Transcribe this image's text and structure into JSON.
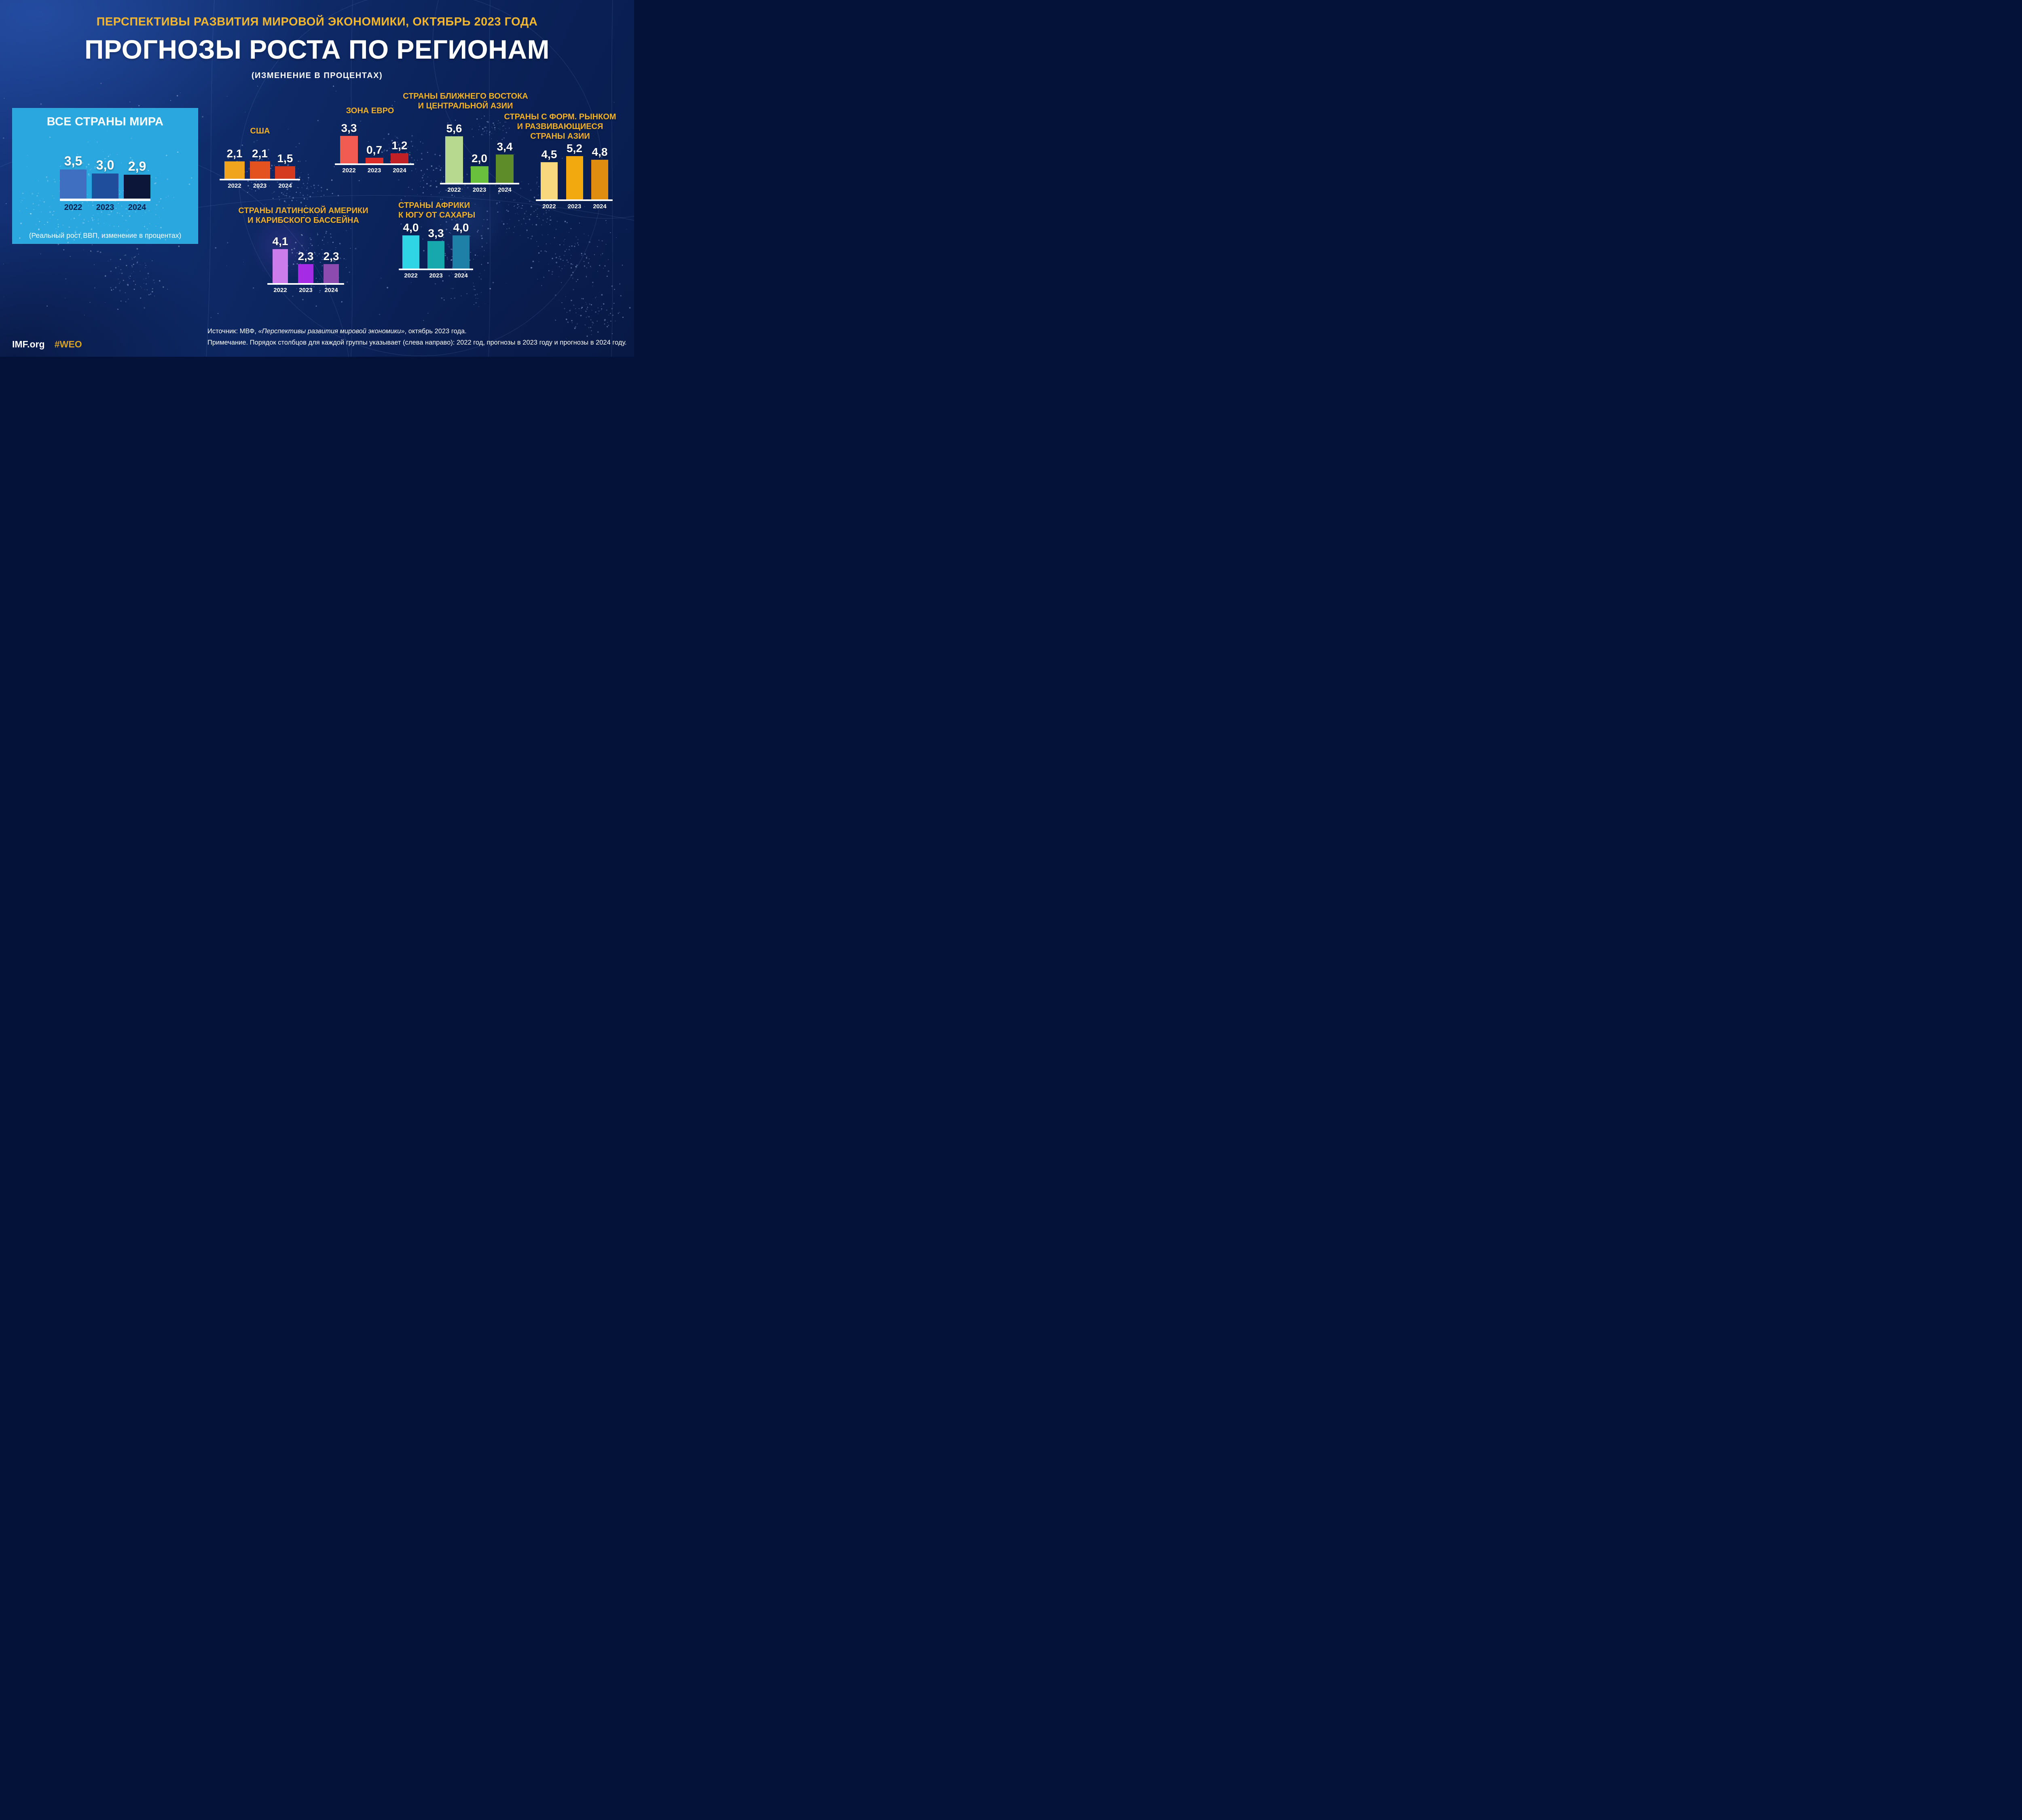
{
  "palette": {
    "background_navy": "#0E2A68",
    "accent_gold": "#F3B229",
    "panel_blue": "#2AA7DF",
    "text_white": "#FFFFFF",
    "panel_year_navy": "#0A2050",
    "hashtag_gold": "#D7A126"
  },
  "header": {
    "kicker": "ПЕРСПЕКТИВЫ РАЗВИТИЯ МИРОВОЙ ЭКОНОМИКИ, ОКТЯБРЬ 2023 ГОДА",
    "title": "ПРОГНОЗЫ РОСТА ПО РЕГИОНАМ",
    "subtitle": "(ИЗМЕНЕНИЕ В ПРОЦЕНТАХ)"
  },
  "chart_data": {
    "type": "bar",
    "years": [
      "2022",
      "2023",
      "2024"
    ],
    "note": "values are real GDP growth, percent change",
    "groups": [
      {
        "id": "world",
        "title_lines": [
          "ВСЕ СТРАНЫ МИРА"
        ],
        "caption": "(Реальный рост ВВП, изменение в процентах)",
        "values": [
          3.5,
          3.0,
          2.9
        ],
        "labels": [
          "3,5",
          "3,0",
          "2,9"
        ],
        "colors": [
          "#3E6FC1",
          "#1F4E9C",
          "#0B1638"
        ]
      },
      {
        "id": "usa",
        "title_lines": [
          "США"
        ],
        "values": [
          2.1,
          2.1,
          1.5
        ],
        "labels": [
          "2,1",
          "2,1",
          "1,5"
        ],
        "colors": [
          "#F0A41E",
          "#E4531F",
          "#D63A1E"
        ]
      },
      {
        "id": "euro",
        "title_lines": [
          "ЗОНА ЕВРО"
        ],
        "values": [
          3.3,
          0.7,
          1.2
        ],
        "labels": [
          "3,3",
          "0,7",
          "1,2"
        ],
        "colors": [
          "#F25B51",
          "#DC2D28",
          "#C02026"
        ]
      },
      {
        "id": "middle-east-central-asia",
        "title_lines": [
          "СТРАНЫ БЛИЖНЕГО ВОСТОКА",
          "И ЦЕНТРАЛЬНОЙ АЗИИ"
        ],
        "values": [
          5.6,
          2.0,
          3.4
        ],
        "labels": [
          "5,6",
          "2,0",
          "3,4"
        ],
        "colors": [
          "#B6D98F",
          "#69C03D",
          "#5D8C28"
        ]
      },
      {
        "id": "emerging-developing-asia",
        "title_lines": [
          "СТРАНЫ С ФОРМ. РЫНКОМ",
          "И РАЗВИВАЮЩИЕСЯ",
          "СТРАНЫ АЗИИ"
        ],
        "values": [
          4.5,
          5.2,
          4.8
        ],
        "labels": [
          "4,5",
          "5,2",
          "4,8"
        ],
        "colors": [
          "#F9D77F",
          "#F2A90F",
          "#DF8D10"
        ]
      },
      {
        "id": "latin-america-caribbean",
        "title_lines": [
          "СТРАНЫ ЛАТИНСКОЙ АМЕРИКИ",
          "И КАРИБСКОГО БАССЕЙНА"
        ],
        "values": [
          4.1,
          2.3,
          2.3
        ],
        "labels": [
          "4,1",
          "2,3",
          "2,3"
        ],
        "colors": [
          "#CC7CEB",
          "#A52BE5",
          "#8C4BAF"
        ]
      },
      {
        "id": "sub-saharan-africa",
        "title_lines": [
          "СТРАНЫ АФРИКИ",
          "К ЮГУ ОТ САХАРЫ"
        ],
        "values": [
          4.0,
          3.3,
          4.0
        ],
        "labels": [
          "4,0",
          "3,3",
          "4,0"
        ],
        "colors": [
          "#2FD5E5",
          "#17A8AD",
          "#1F80A7"
        ]
      }
    ]
  },
  "footer": {
    "source_prefix": "Источник:  МВФ, ",
    "source_title": "«Перспективы развития мировой экономики»",
    "source_suffix": ", октябрь 2023 года.",
    "note": "Примечание.  Порядок столбцов для каждой группы указывает (слева направо): 2022 год, прогнозы в 2023 году и прогнозы в 2024 году.",
    "site": "IMF.org",
    "hashtag": "#WEO"
  }
}
